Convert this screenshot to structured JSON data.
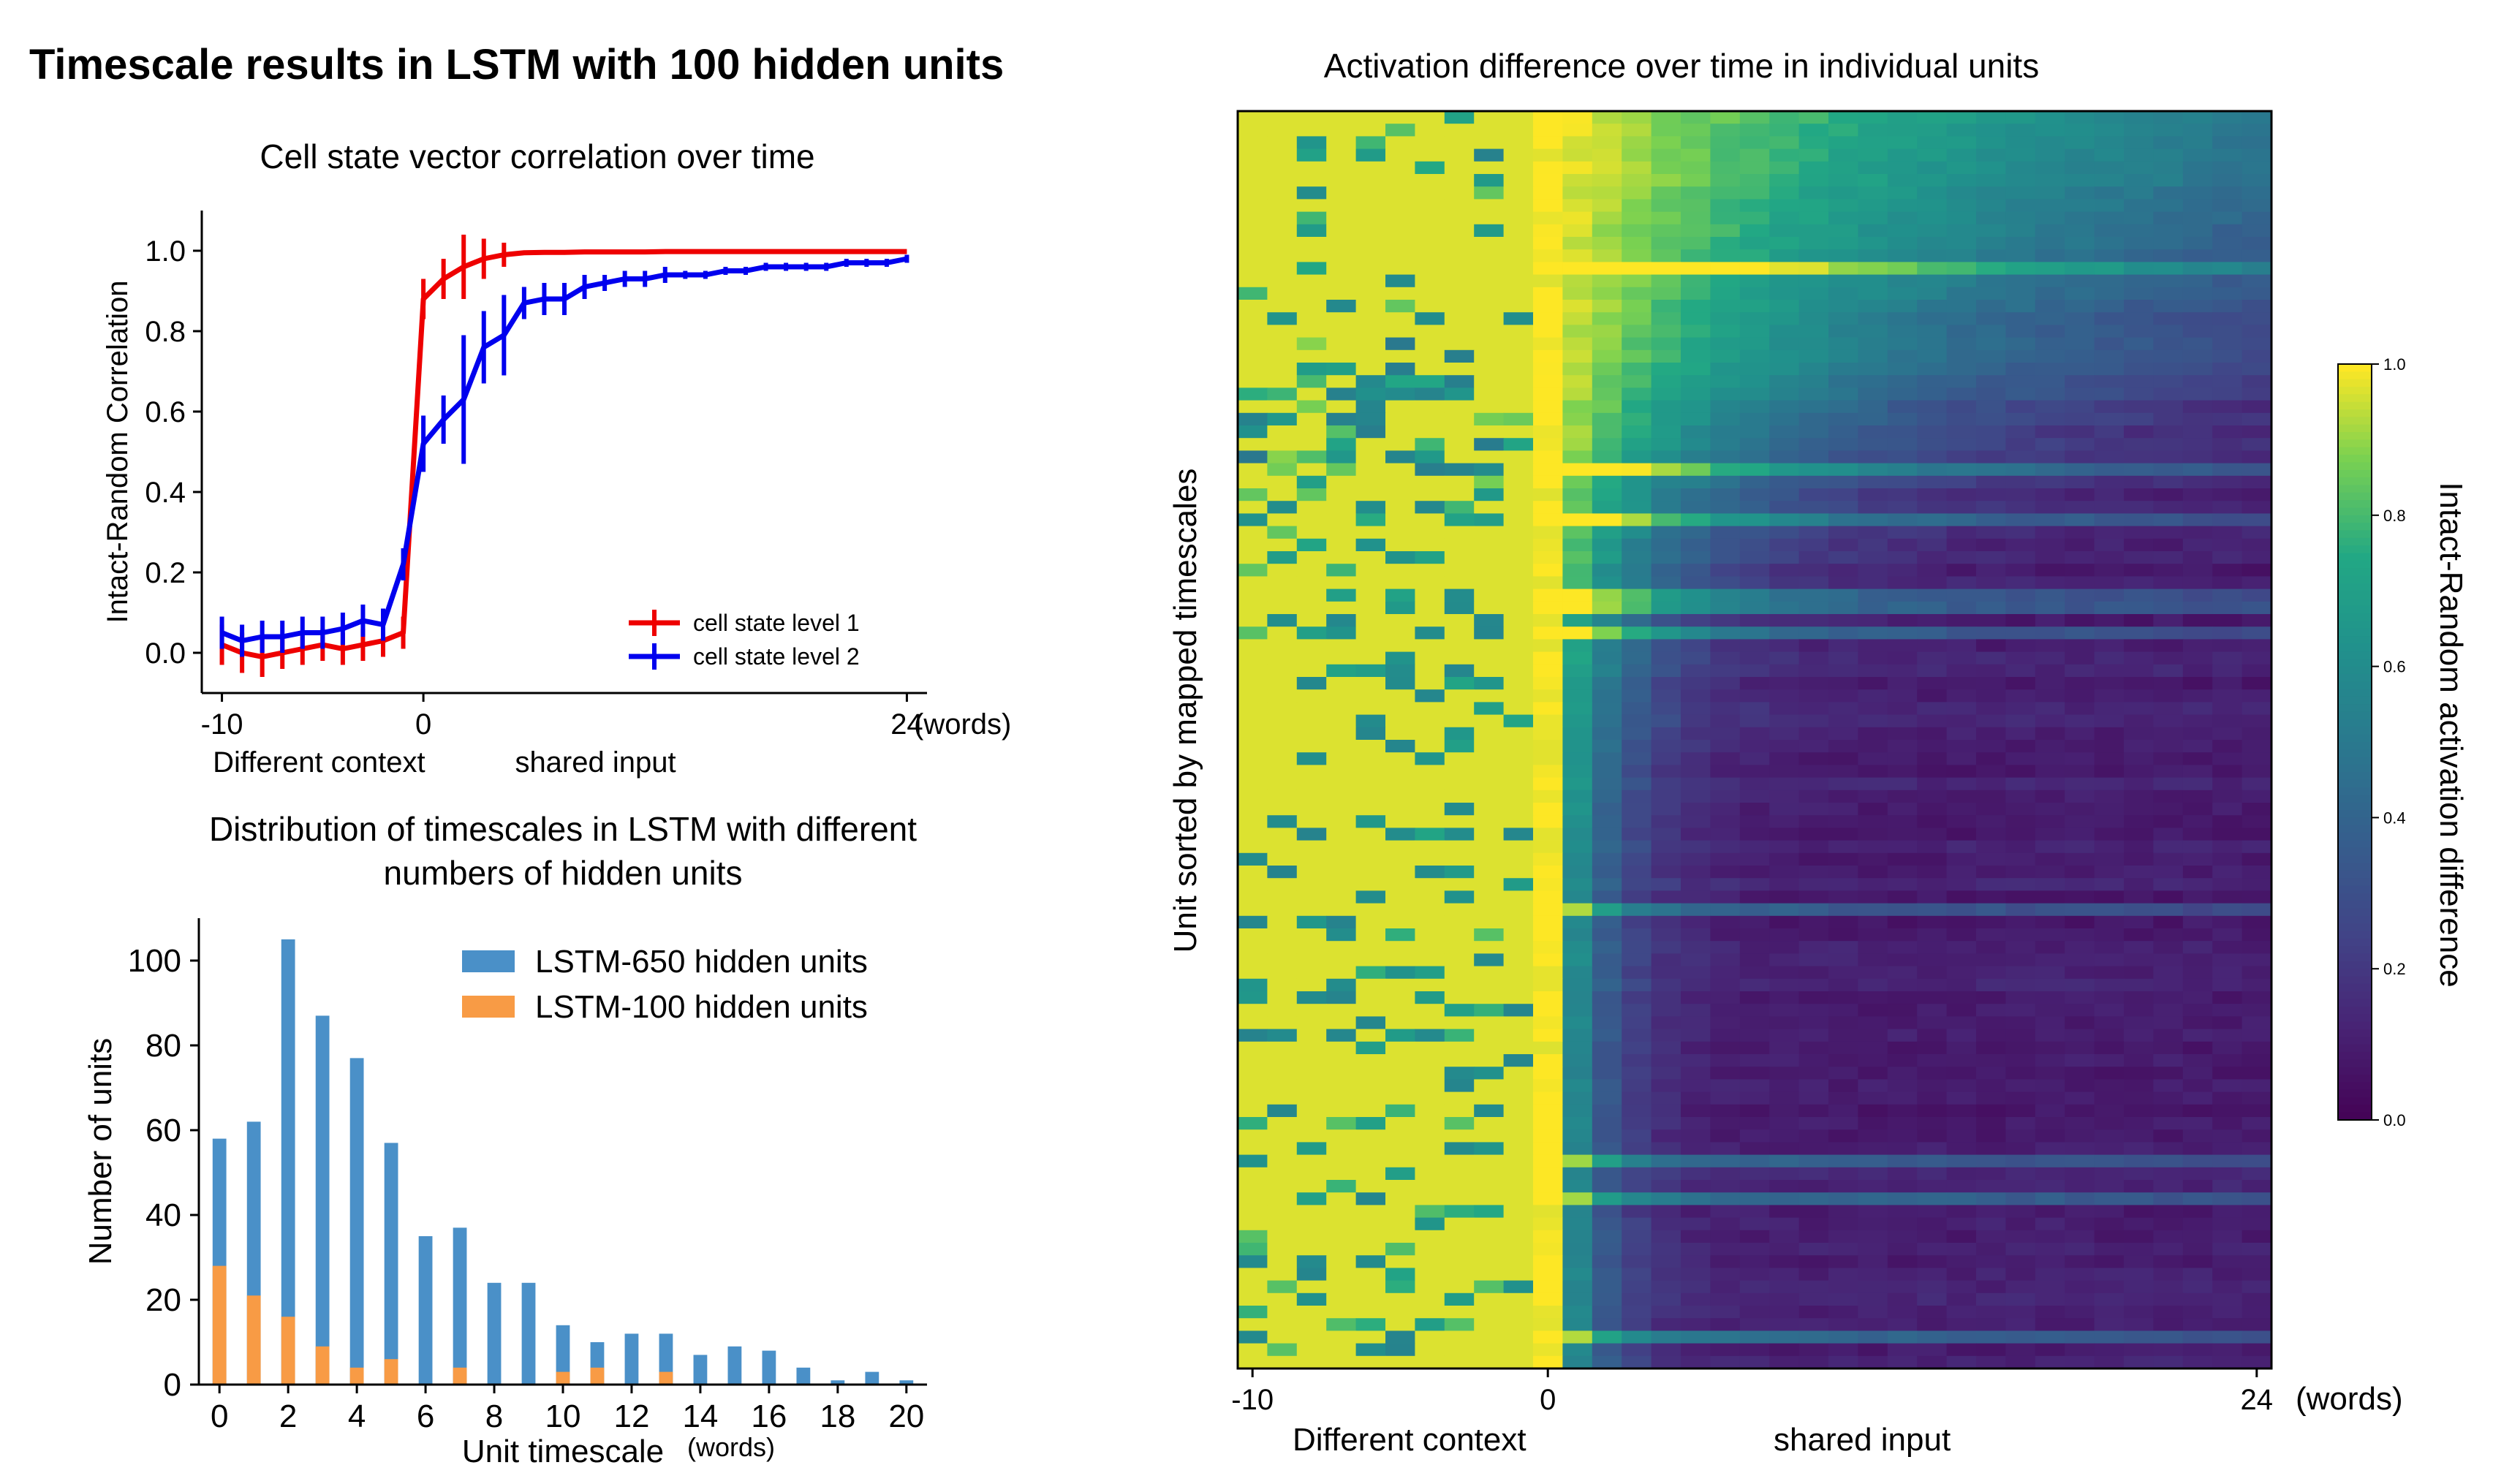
{
  "figure_title": "Timescale results in LSTM with 100 hidden units",
  "chart_data": [
    {
      "type": "line",
      "title": "Cell state vector correlation over time",
      "xlabel": "(words)",
      "ylabel": "Intact-Random Correlation",
      "x_ticks": [
        "-10",
        "0",
        "24"
      ],
      "y_ticks": [
        "0.0",
        "0.2",
        "0.4",
        "0.6",
        "0.8",
        "1.0"
      ],
      "ylim": [
        -0.1,
        1.1
      ],
      "xlim": [
        -11,
        25
      ],
      "x_annotations": [
        {
          "text": "Different context",
          "at": -9
        },
        {
          "text": "shared input",
          "at": 6
        }
      ],
      "legend_position": "lower-right",
      "series": [
        {
          "name": "cell state level 1",
          "color": "#ee0000",
          "x": [
            -10,
            -9,
            -8,
            -7,
            -6,
            -5,
            -4,
            -3,
            -2,
            -1,
            0,
            1,
            2,
            3,
            4,
            5,
            6,
            7,
            8,
            9,
            10,
            11,
            12,
            13,
            14,
            15,
            16,
            17,
            18,
            19,
            20,
            21,
            22,
            23,
            24
          ],
          "y": [
            0.02,
            0.0,
            -0.01,
            0.0,
            0.01,
            0.02,
            0.01,
            0.02,
            0.03,
            0.05,
            0.88,
            0.93,
            0.96,
            0.98,
            0.99,
            0.995,
            0.996,
            0.996,
            0.997,
            0.997,
            0.997,
            0.997,
            0.998,
            0.998,
            0.998,
            0.998,
            0.998,
            0.998,
            0.998,
            0.998,
            0.998,
            0.998,
            0.998,
            0.998,
            0.998
          ],
          "err": [
            0.05,
            0.05,
            0.05,
            0.04,
            0.04,
            0.04,
            0.04,
            0.04,
            0.04,
            0.04,
            0.05,
            0.05,
            0.08,
            0.05,
            0.03,
            0,
            0,
            0,
            0,
            0,
            0,
            0,
            0,
            0,
            0,
            0,
            0,
            0,
            0,
            0,
            0,
            0,
            0,
            0,
            0
          ]
        },
        {
          "name": "cell state level 2",
          "color": "#0000ee",
          "x": [
            -10,
            -9,
            -8,
            -7,
            -6,
            -5,
            -4,
            -3,
            -2,
            -1,
            0,
            1,
            2,
            3,
            4,
            5,
            6,
            7,
            8,
            9,
            10,
            11,
            12,
            13,
            14,
            15,
            16,
            17,
            18,
            19,
            20,
            21,
            22,
            23,
            24
          ],
          "y": [
            0.05,
            0.03,
            0.04,
            0.04,
            0.05,
            0.05,
            0.06,
            0.08,
            0.07,
            0.22,
            0.52,
            0.58,
            0.63,
            0.76,
            0.79,
            0.87,
            0.88,
            0.88,
            0.91,
            0.92,
            0.93,
            0.93,
            0.94,
            0.94,
            0.94,
            0.95,
            0.95,
            0.96,
            0.96,
            0.96,
            0.96,
            0.97,
            0.97,
            0.97,
            0.98
          ],
          "err": [
            0.04,
            0.04,
            0.04,
            0.04,
            0.04,
            0.04,
            0.04,
            0.04,
            0.04,
            0.04,
            0.07,
            0.06,
            0.16,
            0.09,
            0.1,
            0.04,
            0.04,
            0.04,
            0.03,
            0.02,
            0.02,
            0.02,
            0.02,
            0.01,
            0.01,
            0.01,
            0.01,
            0.01,
            0.01,
            0.01,
            0.01,
            0.01,
            0.01,
            0.01,
            0.01
          ]
        }
      ]
    },
    {
      "type": "bar",
      "title": "Distribution of timescales in LSTM with different numbers of hidden units",
      "xlabel": "Unit timescale",
      "xlabel_unit": "(words)",
      "ylabel": "Number of units",
      "x_ticks": [
        "0",
        "2",
        "4",
        "6",
        "8",
        "10",
        "12",
        "14",
        "16",
        "18",
        "20"
      ],
      "y_ticks": [
        "0",
        "20",
        "40",
        "60",
        "80",
        "100"
      ],
      "ylim": [
        0,
        110
      ],
      "xlim": [
        -0.6,
        20.6
      ],
      "legend_position": "top-right",
      "series": [
        {
          "name": "LSTM-650 hidden units",
          "color": "#4a90c8",
          "x": [
            0,
            1,
            2,
            3,
            4,
            5,
            6,
            7,
            8,
            9,
            10,
            11,
            12,
            13,
            14,
            15,
            16,
            17,
            18,
            19,
            20
          ],
          "values": [
            58,
            62,
            105,
            87,
            77,
            57,
            35,
            37,
            24,
            24,
            14,
            10,
            12,
            12,
            7,
            9,
            8,
            4,
            1,
            3,
            1
          ]
        },
        {
          "name": "LSTM-100 hidden units",
          "color": "#f89b45",
          "x": [
            0,
            1,
            2,
            3,
            4,
            5,
            7,
            10,
            11,
            13
          ],
          "values": [
            28,
            21,
            16,
            9,
            4,
            6,
            4,
            3,
            4,
            3
          ]
        }
      ]
    },
    {
      "type": "heatmap",
      "title": "Activation difference over time in individual units",
      "ylabel": "Unit sorted by mapped timescales",
      "xlabel": "(words)",
      "x_ticks": [
        "-10",
        "0",
        "24"
      ],
      "x_annotations": [
        {
          "text": "Different context",
          "at": -6
        },
        {
          "text": "shared input",
          "at": 11
        }
      ],
      "colorbar": {
        "label": "Intact-Random activation difference",
        "ticks": [
          "0.0",
          "0.2",
          "0.4",
          "0.6",
          "0.8",
          "1.0"
        ],
        "range": [
          0,
          1
        ],
        "colormap": "viridis"
      },
      "columns": 35,
      "rows": 100,
      "x_range": [
        -10,
        24
      ],
      "description_of_values": "rows sorted by timescale; left block (context words) mostly near 1.0; after shared input starts values decay toward 0, slower in top rows"
    }
  ]
}
